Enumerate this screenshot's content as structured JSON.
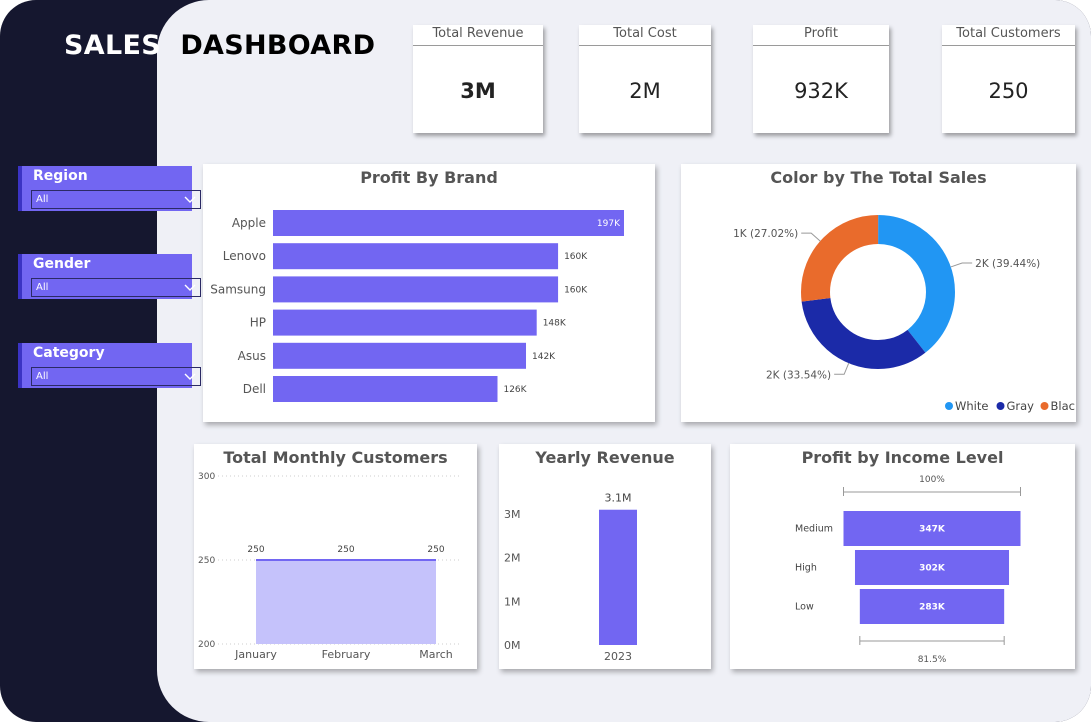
{
  "header": {
    "title_part1": "SALES",
    "title_part2": "DASHBOARD"
  },
  "kpis": [
    {
      "label": "Total Revenue",
      "value": "3M"
    },
    {
      "label": "Total Cost",
      "value": "2M"
    },
    {
      "label": "Profit",
      "value": "932K"
    },
    {
      "label": "Total Customers",
      "value": "250"
    }
  ],
  "slicers": [
    {
      "label": "Region",
      "value": "All"
    },
    {
      "label": "Gender",
      "value": "All"
    },
    {
      "label": "Category",
      "value": "All"
    }
  ],
  "colors": {
    "accent": "#7266f2",
    "navy": "#15172f",
    "white_series": "#2196f3",
    "gray_series": "#1b2aa8",
    "black_series": "#e96b2c",
    "area": "#c5c2fb"
  },
  "chart_data": [
    {
      "id": "profit_by_brand",
      "type": "bar",
      "orientation": "horizontal",
      "title": "Profit By Brand",
      "categories": [
        "Apple",
        "Lenovo",
        "Samsung",
        "HP",
        "Asus",
        "Dell"
      ],
      "values": [
        197,
        160,
        160,
        148,
        142,
        126
      ],
      "labels": [
        "197K",
        "160K",
        "160K",
        "148K",
        "142K",
        "126K"
      ],
      "unit": "K"
    },
    {
      "id": "color_total_sales",
      "type": "pie",
      "donut": true,
      "title": "Color by The Total Sales",
      "categories": [
        "White",
        "Gray",
        "Black"
      ],
      "values": [
        39.44,
        33.54,
        27.02
      ],
      "labels": [
        "2K (39.44%)",
        "2K (33.54%)",
        "1K (27.02%)"
      ],
      "legend": "bottom-right"
    },
    {
      "id": "monthly_customers",
      "type": "area",
      "title": "Total Monthly Customers",
      "categories": [
        "January",
        "February",
        "March"
      ],
      "values": [
        250,
        250,
        250
      ],
      "labels": [
        "250",
        "250",
        "250"
      ],
      "ylim": [
        200,
        300
      ],
      "yticks": [
        "200",
        "250",
        "300"
      ]
    },
    {
      "id": "yearly_revenue",
      "type": "bar",
      "title": "Yearly Revenue",
      "categories": [
        "2023"
      ],
      "values": [
        3.1
      ],
      "labels": [
        "3.1M"
      ],
      "ylim": [
        0,
        3.3
      ],
      "yticks": [
        {
          "v": 0,
          "t": "0M"
        },
        {
          "v": 1,
          "t": "1M"
        },
        {
          "v": 2,
          "t": "2M"
        },
        {
          "v": 3,
          "t": "3M"
        }
      ]
    },
    {
      "id": "profit_income_level",
      "type": "bar",
      "subtype": "funnel",
      "title": "Profit by Income Level",
      "categories": [
        "Medium",
        "High",
        "Low"
      ],
      "values": [
        347,
        302,
        283
      ],
      "labels": [
        "347K",
        "302K",
        "283K"
      ],
      "top_label": "100%",
      "bottom_label": "81.5%"
    }
  ]
}
